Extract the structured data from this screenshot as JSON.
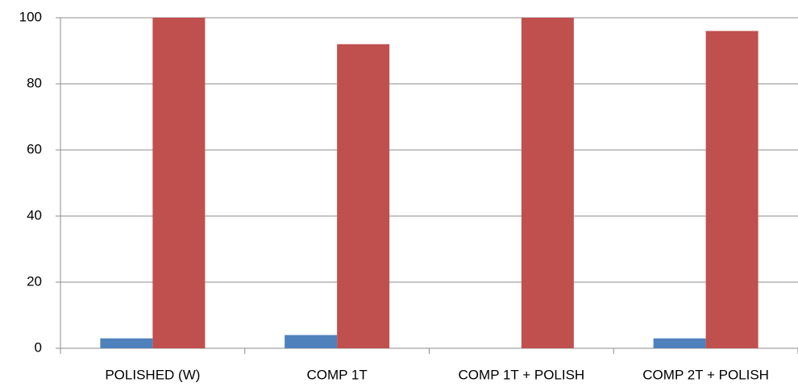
{
  "chart_data": {
    "type": "bar",
    "categories": [
      "POLISHED (W)",
      "COMP 1T",
      "COMP 1T + POLISH",
      "COMP 2T + POLISH"
    ],
    "series": [
      {
        "color": "#4f81bd",
        "values": [
          3,
          4,
          0,
          3
        ]
      },
      {
        "color": "#c0504d",
        "values": [
          100,
          92,
          100,
          96
        ]
      }
    ],
    "ylim": [
      0,
      100
    ],
    "yticks": [
      0,
      20,
      40,
      60,
      80,
      100
    ],
    "grid": true
  }
}
